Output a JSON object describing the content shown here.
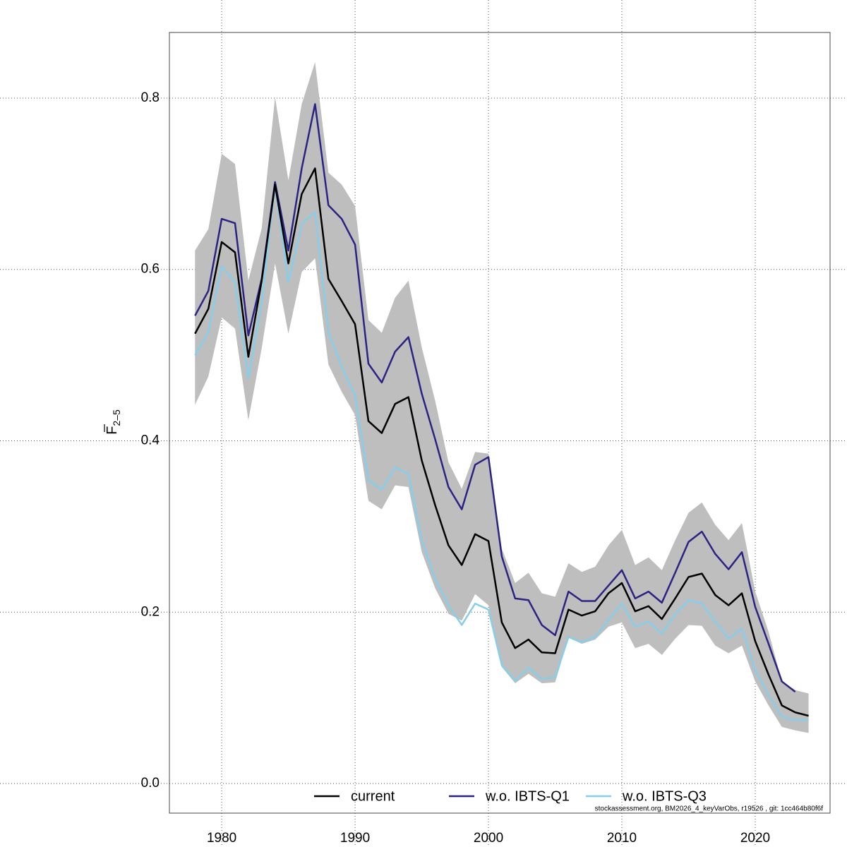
{
  "chart_data": {
    "type": "line",
    "y_label": "F",
    "y_label_subscript": "2–5",
    "footnote": "stockassessment.org, BM2026_4_keyVarObs, r19526 , git: 1cc464b80f6f",
    "x": [
      1978,
      1979,
      1980,
      1981,
      1982,
      1983,
      1984,
      1985,
      1986,
      1987,
      1988,
      1989,
      1990,
      1991,
      1992,
      1993,
      1994,
      1995,
      1996,
      1997,
      1998,
      1999,
      2000,
      2001,
      2002,
      2003,
      2004,
      2005,
      2006,
      2007,
      2008,
      2009,
      2010,
      2011,
      2012,
      2013,
      2014,
      2015,
      2016,
      2017,
      2018,
      2019,
      2020,
      2021,
      2022,
      2023,
      2024
    ],
    "xlim": [
      1976.08,
      2025.61
    ],
    "ylim": [
      -0.0346,
      0.8766
    ],
    "xticks": [
      1980,
      1990,
      2000,
      2010,
      2020
    ],
    "yticks": [
      {
        "value": 0,
        "label": "0.0"
      },
      0.2,
      0.4,
      0.6,
      0.8
    ],
    "grid": true,
    "legend": "bottom",
    "band": {
      "color": "#bebebe",
      "upper": [
        0.622,
        0.647,
        0.735,
        0.723,
        0.587,
        0.648,
        0.801,
        0.704,
        0.793,
        0.842,
        0.713,
        0.699,
        0.674,
        0.541,
        0.526,
        0.567,
        0.587,
        0.509,
        0.447,
        0.375,
        0.344,
        0.387,
        0.385,
        0.274,
        0.234,
        0.246,
        0.222,
        0.218,
        0.257,
        0.247,
        0.253,
        0.278,
        0.296,
        0.255,
        0.264,
        0.249,
        0.284,
        0.316,
        0.328,
        0.302,
        0.284,
        0.304,
        0.224,
        0.177,
        0.119,
        0.109,
        0.105
      ],
      "lower": [
        0.442,
        0.475,
        0.544,
        0.531,
        0.424,
        0.508,
        0.607,
        0.525,
        0.597,
        0.613,
        0.489,
        0.457,
        0.43,
        0.33,
        0.32,
        0.348,
        0.346,
        0.27,
        0.228,
        0.198,
        0.19,
        0.221,
        0.208,
        0.136,
        0.117,
        0.128,
        0.117,
        0.118,
        0.17,
        0.163,
        0.168,
        0.183,
        0.188,
        0.158,
        0.163,
        0.15,
        0.169,
        0.185,
        0.184,
        0.161,
        0.152,
        0.161,
        0.119,
        0.091,
        0.066,
        0.062,
        0.059
      ]
    },
    "series": [
      {
        "name": "current",
        "color": "#000000",
        "values": [
          0.525,
          0.554,
          0.632,
          0.62,
          0.498,
          0.587,
          0.699,
          0.607,
          0.688,
          0.718,
          0.589,
          0.563,
          0.536,
          0.423,
          0.409,
          0.443,
          0.451,
          0.377,
          0.325,
          0.278,
          0.255,
          0.291,
          0.283,
          0.188,
          0.158,
          0.168,
          0.153,
          0.152,
          0.203,
          0.196,
          0.201,
          0.222,
          0.234,
          0.201,
          0.207,
          0.192,
          0.216,
          0.241,
          0.245,
          0.22,
          0.208,
          0.222,
          0.166,
          0.127,
          0.091,
          0.083,
          0.079
        ]
      },
      {
        "name": "w.o. IBTS-Q1",
        "color": "#2b2383",
        "values": [
          0.546,
          0.575,
          0.659,
          0.654,
          0.523,
          0.589,
          0.702,
          0.622,
          0.718,
          0.793,
          0.675,
          0.659,
          0.629,
          0.49,
          0.468,
          0.504,
          0.521,
          0.455,
          0.402,
          0.346,
          0.32,
          0.372,
          0.381,
          0.265,
          0.216,
          0.214,
          0.185,
          0.173,
          0.224,
          0.213,
          0.213,
          0.231,
          0.249,
          0.216,
          0.224,
          0.211,
          0.246,
          0.282,
          0.294,
          0.268,
          0.25,
          0.27,
          0.206,
          0.163,
          0.119,
          0.107,
          null
        ]
      },
      {
        "name": "w.o. IBTS-Q3",
        "color": "#87ceeb",
        "values": [
          0.5,
          0.527,
          0.604,
          0.585,
          0.473,
          0.562,
          0.699,
          0.585,
          0.653,
          0.667,
          0.527,
          0.486,
          0.453,
          0.354,
          0.343,
          0.369,
          0.361,
          0.284,
          0.239,
          0.208,
          0.185,
          0.21,
          0.203,
          0.138,
          0.12,
          0.135,
          0.122,
          0.124,
          0.171,
          0.165,
          0.171,
          0.191,
          0.21,
          0.183,
          0.189,
          0.175,
          0.198,
          0.214,
          0.21,
          0.189,
          0.169,
          0.181,
          0.132,
          0.103,
          0.078,
          0.074,
          0.074
        ]
      }
    ]
  }
}
